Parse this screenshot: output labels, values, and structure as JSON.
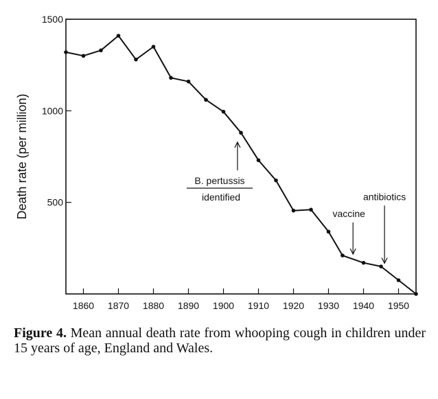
{
  "chart_data": {
    "type": "line",
    "ylabel": "Death rate  (per million)",
    "xlim": [
      1855,
      1955
    ],
    "ylim": [
      0,
      1500
    ],
    "x_ticks": [
      1860,
      1870,
      1880,
      1890,
      1900,
      1910,
      1920,
      1930,
      1940,
      1950
    ],
    "x_tick_labels": [
      "1860",
      "1870",
      "1880",
      "1890",
      "1900",
      "1910",
      "1920",
      "1930",
      "1940",
      "1950"
    ],
    "y_ticks": [
      500,
      1000,
      1500
    ],
    "y_tick_labels": [
      "500",
      "1000",
      "1500"
    ],
    "series": [
      {
        "x": [
          1855,
          1860,
          1865,
          1870,
          1875,
          1880,
          1885,
          1890,
          1895,
          1900,
          1905,
          1910,
          1915,
          1920,
          1925,
          1930,
          1934,
          1940,
          1945,
          1950,
          1955
        ],
        "values": [
          1320,
          1300,
          1330,
          1410,
          1280,
          1350,
          1180,
          1160,
          1060,
          995,
          880,
          730,
          620,
          455,
          460,
          340,
          210,
          170,
          150,
          75,
          0
        ]
      }
    ],
    "annotations": [
      {
        "lines": [
          "B. pertussis",
          "identified"
        ],
        "x": 1904,
        "y": 840
      },
      {
        "lines": [
          "vaccine"
        ],
        "x": 1937,
        "y": 210
      },
      {
        "lines": [
          "antibiotics"
        ],
        "x": 1946,
        "y": 160
      }
    ]
  },
  "caption": {
    "label": "Figure 4.",
    "text": "Mean annual death rate from whooping cough in children under 15 years of age, England and Wales."
  }
}
